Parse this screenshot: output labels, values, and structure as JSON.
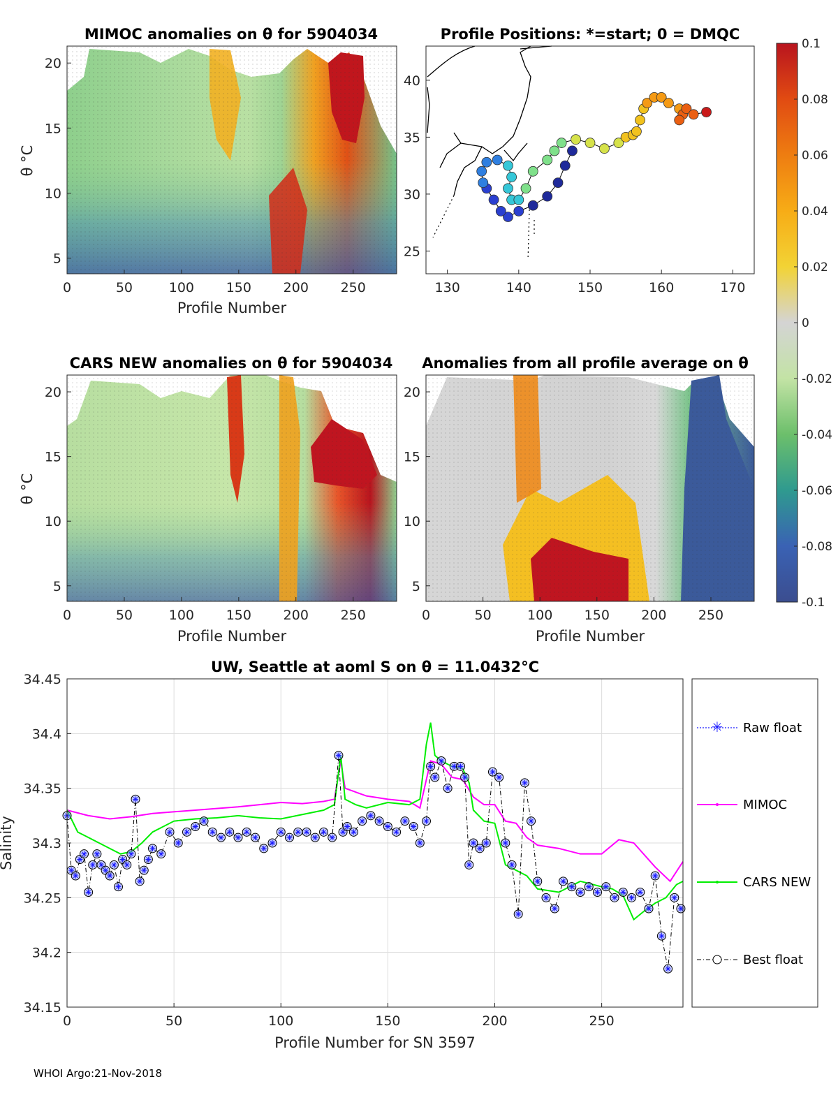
{
  "footer": {
    "text": "WHOI Argo:21-Nov-2018"
  },
  "colors": {
    "mimoc_line": "#ff00ff",
    "cars_line": "#00ee00",
    "raw_float": "#1a1aff",
    "best_float": "#000000",
    "grid": "#dcdcdc"
  },
  "chart_data": [
    {
      "id": "mimoc",
      "type": "heatmap",
      "title": "MIMOC anomalies on θ  for 5904034",
      "xlabel": "Profile Number",
      "ylabel": "θ °C",
      "xlim": [
        0,
        288
      ],
      "ylim": [
        3.8,
        21.3
      ],
      "xticks": [
        0,
        50,
        100,
        150,
        200,
        250
      ],
      "yticks": [
        5,
        10,
        15,
        20
      ],
      "xtick_labels": [
        "0",
        "50",
        "100",
        "150",
        "200",
        "250"
      ],
      "ytick_labels": [
        "5",
        "10",
        "15",
        "20"
      ]
    },
    {
      "id": "positions",
      "type": "scatter",
      "title": "Profile Positions: *=start; 0 = DMQC",
      "xlim": [
        127,
        173
      ],
      "ylim": [
        23,
        43
      ],
      "xticks": [
        130,
        140,
        150,
        160,
        170
      ],
      "yticks": [
        25,
        30,
        35,
        40
      ],
      "xtick_labels": [
        "130",
        "140",
        "150",
        "160",
        "170"
      ],
      "ytick_labels": [
        "25",
        "30",
        "35",
        "40"
      ],
      "track_lon": [
        147.5,
        146.5,
        145.5,
        144,
        142,
        140,
        138.5,
        137.5,
        136.5,
        135.5,
        135,
        134.8,
        135.5,
        137,
        138.5,
        139,
        138.5,
        139,
        140,
        141,
        142,
        144,
        145,
        146,
        148,
        150,
        152,
        154,
        155,
        156,
        156.5,
        157,
        157.5,
        158,
        159,
        160,
        161,
        162.5,
        163,
        162.5,
        163.5,
        164.5,
        166.3
      ],
      "track_lat": [
        33.8,
        32.5,
        31,
        29.8,
        29,
        28.5,
        28,
        28.5,
        29.5,
        30.5,
        31,
        32,
        32.8,
        33,
        32.5,
        31.5,
        30.5,
        29.5,
        29.5,
        30.5,
        32,
        33,
        33.8,
        34.5,
        34.8,
        34.5,
        34,
        34.5,
        35,
        35.2,
        35.5,
        36.5,
        37.5,
        38,
        38.5,
        38.5,
        38,
        37.5,
        37,
        36.5,
        37.5,
        37,
        37.2
      ]
    },
    {
      "id": "colorbar",
      "type": "colorbar",
      "ticks": [
        0.1,
        0.08,
        0.06,
        0.04,
        0.02,
        0,
        -0.02,
        -0.04,
        -0.06,
        -0.08,
        -0.1
      ],
      "tick_labels": [
        "0.1",
        "0.08",
        "0.06",
        "0.04",
        "0.02",
        "0",
        "-0.02",
        "-0.04",
        "-0.06",
        "-0.08",
        "-0.1"
      ],
      "range": [
        -0.1,
        0.1
      ]
    },
    {
      "id": "cars",
      "type": "heatmap",
      "title": "CARS NEW anomalies on θ for 5904034",
      "xlabel": "Profile Number",
      "ylabel": "θ °C",
      "xlim": [
        0,
        288
      ],
      "ylim": [
        3.8,
        21.3
      ],
      "xticks": [
        0,
        50,
        100,
        150,
        200,
        250
      ],
      "yticks": [
        5,
        10,
        15,
        20
      ],
      "xtick_labels": [
        "0",
        "50",
        "100",
        "150",
        "200",
        "250"
      ],
      "ytick_labels": [
        "5",
        "10",
        "15",
        "20"
      ]
    },
    {
      "id": "allavg",
      "type": "heatmap",
      "title": "Anomalies from all profile average on θ",
      "xlabel": "Profile Number",
      "xlim": [
        0,
        288
      ],
      "ylim": [
        3.8,
        21.3
      ],
      "xticks": [
        0,
        50,
        100,
        150,
        200,
        250
      ],
      "yticks": [
        5,
        10,
        15,
        20
      ],
      "xtick_labels": [
        "0",
        "50",
        "100",
        "150",
        "200",
        "250"
      ],
      "ytick_labels": [
        "5",
        "10",
        "15",
        "20"
      ]
    },
    {
      "id": "salinity",
      "type": "line",
      "title": "UW, Seattle at aoml S on θ = 11.0432°C",
      "xlabel": "Profile Number for SN 3597",
      "ylabel": "Salinity",
      "xlim": [
        0,
        288
      ],
      "ylim": [
        34.15,
        34.45
      ],
      "xticks": [
        0,
        50,
        100,
        150,
        200,
        250
      ],
      "yticks": [
        34.15,
        34.2,
        34.25,
        34.3,
        34.35,
        34.4,
        34.45
      ],
      "xtick_labels": [
        "0",
        "50",
        "100",
        "150",
        "200",
        "250"
      ],
      "ytick_labels": [
        "34.15",
        "34.2",
        "34.25",
        "34.3",
        "34.35",
        "34.4",
        "34.45"
      ],
      "legend": [
        "Raw float",
        "MIMOC",
        "CARS NEW",
        "Best float"
      ],
      "series": [
        {
          "name": "MIMOC",
          "x": [
            0,
            10,
            20,
            30,
            40,
            60,
            80,
            100,
            110,
            120,
            125,
            128,
            130,
            140,
            150,
            160,
            165,
            170,
            175,
            180,
            185,
            190,
            195,
            200,
            205,
            210,
            215,
            220,
            230,
            240,
            250,
            258,
            265,
            275,
            282,
            288
          ],
          "y": [
            34.33,
            34.325,
            34.322,
            34.324,
            34.327,
            34.33,
            34.333,
            34.337,
            34.336,
            34.338,
            34.34,
            34.375,
            34.35,
            34.343,
            34.34,
            34.338,
            34.332,
            34.375,
            34.372,
            34.36,
            34.358,
            34.342,
            34.335,
            34.335,
            34.32,
            34.318,
            34.305,
            34.298,
            34.295,
            34.29,
            34.29,
            34.303,
            34.3,
            34.278,
            34.265,
            34.283
          ]
        },
        {
          "name": "CARS NEW",
          "x": [
            0,
            5,
            10,
            15,
            20,
            25,
            30,
            35,
            40,
            50,
            60,
            70,
            80,
            90,
            100,
            110,
            120,
            125,
            128,
            130,
            135,
            140,
            150,
            160,
            165,
            168,
            170,
            172,
            175,
            180,
            185,
            188,
            190,
            195,
            200,
            205,
            210,
            215,
            220,
            230,
            240,
            250,
            255,
            260,
            265,
            270,
            275,
            280,
            285,
            288
          ],
          "y": [
            34.33,
            34.31,
            34.305,
            34.3,
            34.295,
            34.29,
            34.292,
            34.3,
            34.31,
            34.32,
            34.322,
            34.323,
            34.325,
            34.323,
            34.322,
            34.326,
            34.33,
            34.335,
            34.38,
            34.34,
            34.335,
            34.332,
            34.337,
            34.335,
            34.34,
            34.39,
            34.41,
            34.38,
            34.375,
            34.37,
            34.368,
            34.355,
            34.33,
            34.32,
            34.318,
            34.28,
            34.275,
            34.27,
            34.258,
            34.255,
            34.265,
            34.26,
            34.258,
            34.252,
            34.23,
            34.238,
            34.245,
            34.25,
            34.262,
            34.265
          ]
        },
        {
          "name": "Best float",
          "x": [
            0,
            2,
            4,
            6,
            8,
            10,
            12,
            14,
            16,
            18,
            20,
            22,
            24,
            26,
            28,
            30,
            32,
            34,
            36,
            38,
            40,
            44,
            48,
            52,
            56,
            60,
            64,
            68,
            72,
            76,
            80,
            84,
            88,
            92,
            96,
            100,
            104,
            108,
            112,
            116,
            120,
            124,
            127,
            129,
            131,
            134,
            138,
            142,
            146,
            150,
            154,
            158,
            162,
            165,
            168,
            170,
            172,
            175,
            178,
            181,
            184,
            186,
            188,
            190,
            193,
            196,
            199,
            202,
            205,
            208,
            211,
            214,
            217,
            220,
            224,
            228,
            232,
            236,
            240,
            244,
            248,
            252,
            256,
            260,
            264,
            268,
            272,
            275,
            278,
            281,
            284,
            287
          ],
          "y": [
            34.325,
            34.275,
            34.27,
            34.285,
            34.29,
            34.255,
            34.28,
            34.29,
            34.28,
            34.275,
            34.27,
            34.28,
            34.26,
            34.285,
            34.28,
            34.29,
            34.34,
            34.265,
            34.275,
            34.285,
            34.295,
            34.29,
            34.31,
            34.3,
            34.31,
            34.315,
            34.32,
            34.31,
            34.305,
            34.31,
            34.305,
            34.31,
            34.305,
            34.295,
            34.3,
            34.31,
            34.305,
            34.31,
            34.31,
            34.305,
            34.31,
            34.305,
            34.38,
            34.31,
            34.315,
            34.31,
            34.32,
            34.325,
            34.32,
            34.315,
            34.31,
            34.32,
            34.315,
            34.3,
            34.32,
            34.37,
            34.36,
            34.375,
            34.35,
            34.37,
            34.37,
            34.36,
            34.28,
            34.3,
            34.295,
            34.3,
            34.365,
            34.36,
            34.3,
            34.28,
            34.235,
            34.355,
            34.32,
            34.265,
            34.25,
            34.24,
            34.265,
            34.26,
            34.255,
            34.26,
            34.255,
            34.26,
            34.25,
            34.255,
            34.25,
            34.255,
            34.24,
            34.27,
            34.215,
            34.185,
            34.25,
            34.24
          ]
        }
      ]
    }
  ]
}
